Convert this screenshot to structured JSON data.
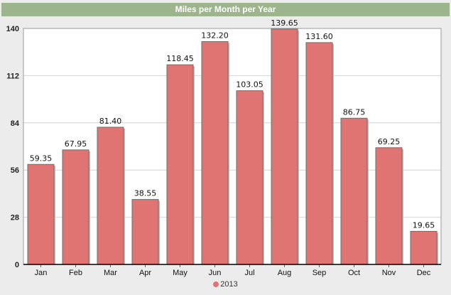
{
  "chart_data": {
    "type": "bar",
    "title": "Miles per Month per Year",
    "categories": [
      "Jan",
      "Feb",
      "Mar",
      "Apr",
      "May",
      "Jun",
      "Jul",
      "Aug",
      "Sep",
      "Oct",
      "Nov",
      "Dec"
    ],
    "series": [
      {
        "name": "2013",
        "values": [
          59.35,
          67.95,
          81.4,
          38.55,
          118.45,
          132.2,
          103.05,
          139.65,
          131.6,
          86.75,
          69.25,
          19.65
        ],
        "labels": [
          "59.35",
          "67.95",
          "81.40",
          "38.55",
          "118.45",
          "132.20",
          "103.05",
          "139.65",
          "131.60",
          "86.75",
          "69.25",
          "19.65"
        ]
      }
    ],
    "yticks": [
      0,
      28,
      56,
      84,
      112,
      140
    ],
    "ylim": [
      0,
      140
    ],
    "grid": true,
    "legend": "bottom-center",
    "colors": {
      "bar": "#e07472",
      "bar_border": "#6e6e6e",
      "title_bar": "#9db58c"
    }
  }
}
